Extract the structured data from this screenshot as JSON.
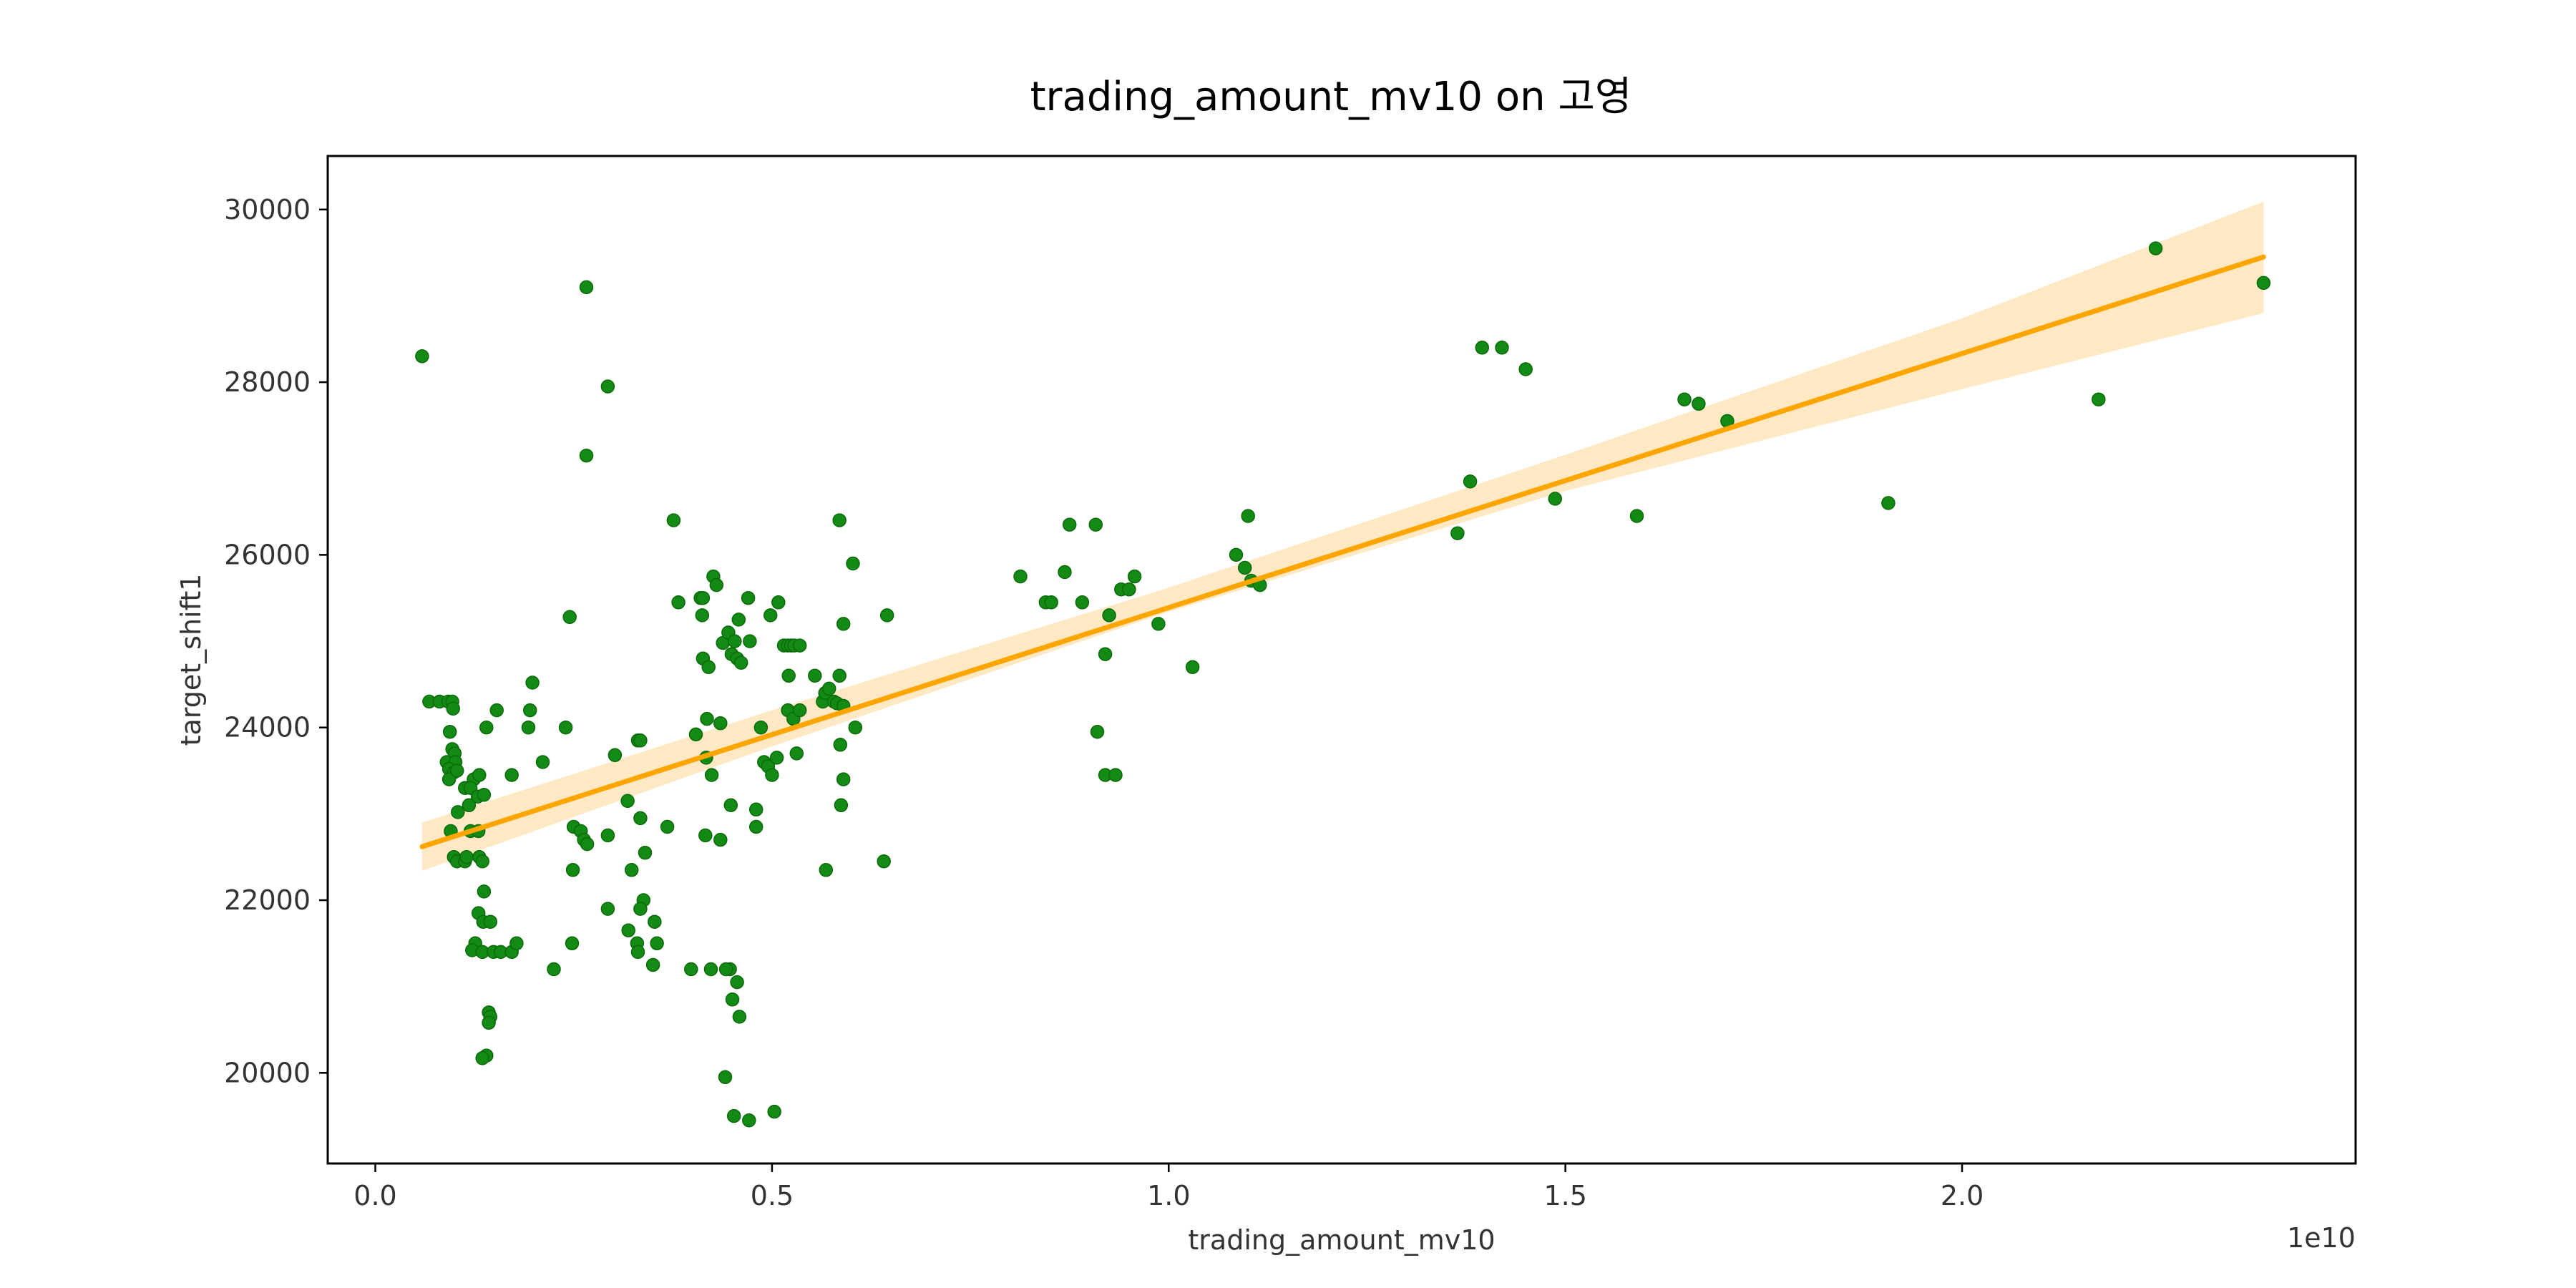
{
  "chart_data": {
    "type": "scatter",
    "title": "trading_amount_mv10 on 고영",
    "xlabel": "trading_amount_mv10",
    "ylabel": "target_shift1",
    "x_offset_label": "1e10",
    "xlim": [
      -0.06,
      2.496
    ],
    "ylim": [
      18950,
      30620
    ],
    "x_ticks": [
      0.0,
      0.5,
      1.0,
      1.5,
      2.0
    ],
    "x_tick_labels": [
      "0.0",
      "0.5",
      "1.0",
      "1.5",
      "2.0"
    ],
    "y_ticks": [
      20000,
      22000,
      24000,
      26000,
      28000,
      30000
    ],
    "y_tick_labels": [
      "20000",
      "22000",
      "24000",
      "26000",
      "28000",
      "30000"
    ],
    "grid": false,
    "legend": false,
    "colors": {
      "points": "#138a13",
      "point_edge": "#0b6a0b",
      "regression_line": "#ffa500",
      "confidence_band": "#ffe9c4",
      "axes": "#000000"
    },
    "series": [
      {
        "kind": "points",
        "units": "x in 1e10",
        "points": [
          [
            0.059,
            28300
          ],
          [
            0.266,
            29100
          ],
          [
            0.266,
            27150
          ],
          [
            0.293,
            27950
          ],
          [
            0.245,
            25280
          ],
          [
            0.376,
            26400
          ],
          [
            0.068,
            24300
          ],
          [
            0.081,
            24300
          ],
          [
            0.092,
            24300
          ],
          [
            0.097,
            24300
          ],
          [
            0.098,
            24220
          ],
          [
            0.094,
            23950
          ],
          [
            0.097,
            23750
          ],
          [
            0.1,
            23700
          ],
          [
            0.09,
            23600
          ],
          [
            0.101,
            23600
          ],
          [
            0.093,
            23520
          ],
          [
            0.099,
            23480
          ],
          [
            0.093,
            23400
          ],
          [
            0.103,
            23500
          ],
          [
            0.124,
            23400
          ],
          [
            0.131,
            23450
          ],
          [
            0.113,
            23300
          ],
          [
            0.12,
            23300
          ],
          [
            0.118,
            23100
          ],
          [
            0.104,
            23020
          ],
          [
            0.129,
            23200
          ],
          [
            0.137,
            23220
          ],
          [
            0.153,
            24200
          ],
          [
            0.14,
            24000
          ],
          [
            0.172,
            23450
          ],
          [
            0.193,
            24000
          ],
          [
            0.195,
            24200
          ],
          [
            0.198,
            24520
          ],
          [
            0.211,
            23600
          ],
          [
            0.24,
            24000
          ],
          [
            0.095,
            22800
          ],
          [
            0.12,
            22800
          ],
          [
            0.13,
            22800
          ],
          [
            0.099,
            22500
          ],
          [
            0.103,
            22450
          ],
          [
            0.113,
            22450
          ],
          [
            0.115,
            22500
          ],
          [
            0.131,
            22500
          ],
          [
            0.135,
            22450
          ],
          [
            0.137,
            22100
          ],
          [
            0.13,
            21850
          ],
          [
            0.136,
            21750
          ],
          [
            0.145,
            21750
          ],
          [
            0.126,
            21500
          ],
          [
            0.122,
            21420
          ],
          [
            0.135,
            21400
          ],
          [
            0.149,
            21400
          ],
          [
            0.158,
            21400
          ],
          [
            0.172,
            21400
          ],
          [
            0.178,
            21500
          ],
          [
            0.143,
            20700
          ],
          [
            0.145,
            20650
          ],
          [
            0.143,
            20580
          ],
          [
            0.14,
            20200
          ],
          [
            0.135,
            20170
          ],
          [
            0.225,
            21200
          ],
          [
            0.25,
            22850
          ],
          [
            0.259,
            22800
          ],
          [
            0.263,
            22700
          ],
          [
            0.267,
            22650
          ],
          [
            0.249,
            22350
          ],
          [
            0.248,
            21500
          ],
          [
            0.293,
            22750
          ],
          [
            0.293,
            21900
          ],
          [
            0.302,
            23680
          ],
          [
            0.318,
            23150
          ],
          [
            0.323,
            22350
          ],
          [
            0.334,
            22950
          ],
          [
            0.331,
            23850
          ],
          [
            0.334,
            23850
          ],
          [
            0.34,
            22550
          ],
          [
            0.319,
            21650
          ],
          [
            0.33,
            21500
          ],
          [
            0.331,
            21400
          ],
          [
            0.338,
            22000
          ],
          [
            0.334,
            21900
          ],
          [
            0.352,
            21750
          ],
          [
            0.355,
            21500
          ],
          [
            0.35,
            21250
          ],
          [
            0.368,
            22850
          ],
          [
            0.382,
            25450
          ],
          [
            0.398,
            21200
          ],
          [
            0.404,
            23920
          ],
          [
            0.41,
            25500
          ],
          [
            0.413,
            25500
          ],
          [
            0.413,
            24800
          ],
          [
            0.412,
            25300
          ],
          [
            0.418,
            24100
          ],
          [
            0.42,
            24700
          ],
          [
            0.417,
            23650
          ],
          [
            0.424,
            23450
          ],
          [
            0.426,
            25750
          ],
          [
            0.43,
            25650
          ],
          [
            0.435,
            24050
          ],
          [
            0.438,
            24980
          ],
          [
            0.445,
            25100
          ],
          [
            0.449,
            24850
          ],
          [
            0.453,
            25000
          ],
          [
            0.456,
            24800
          ],
          [
            0.458,
            25250
          ],
          [
            0.461,
            24750
          ],
          [
            0.47,
            25500
          ],
          [
            0.472,
            25000
          ],
          [
            0.448,
            23100
          ],
          [
            0.435,
            22700
          ],
          [
            0.416,
            22750
          ],
          [
            0.423,
            21200
          ],
          [
            0.447,
            21200
          ],
          [
            0.442,
            21200
          ],
          [
            0.441,
            19950
          ],
          [
            0.45,
            20850
          ],
          [
            0.456,
            21050
          ],
          [
            0.459,
            20650
          ],
          [
            0.452,
            19500
          ],
          [
            0.471,
            19450
          ],
          [
            0.503,
            19550
          ],
          [
            0.48,
            23050
          ],
          [
            0.48,
            22850
          ],
          [
            0.486,
            24000
          ],
          [
            0.49,
            23600
          ],
          [
            0.495,
            23550
          ],
          [
            0.5,
            23450
          ],
          [
            0.506,
            23650
          ],
          [
            0.498,
            25300
          ],
          [
            0.508,
            25450
          ],
          [
            0.515,
            24950
          ],
          [
            0.52,
            24950
          ],
          [
            0.524,
            24950
          ],
          [
            0.528,
            24950
          ],
          [
            0.52,
            24200
          ],
          [
            0.521,
            24600
          ],
          [
            0.527,
            24100
          ],
          [
            0.535,
            24950
          ],
          [
            0.535,
            24200
          ],
          [
            0.531,
            23700
          ],
          [
            0.554,
            24600
          ],
          [
            0.564,
            24300
          ],
          [
            0.567,
            24400
          ],
          [
            0.572,
            24450
          ],
          [
            0.578,
            24300
          ],
          [
            0.582,
            24280
          ],
          [
            0.585,
            24600
          ],
          [
            0.59,
            24250
          ],
          [
            0.568,
            22350
          ],
          [
            0.585,
            26400
          ],
          [
            0.59,
            25200
          ],
          [
            0.602,
            25900
          ],
          [
            0.605,
            24000
          ],
          [
            0.586,
            23800
          ],
          [
            0.59,
            23400
          ],
          [
            0.587,
            23100
          ],
          [
            0.641,
            22450
          ],
          [
            0.645,
            25300
          ],
          [
            0.813,
            25750
          ],
          [
            0.845,
            25450
          ],
          [
            0.852,
            25450
          ],
          [
            0.869,
            25800
          ],
          [
            0.875,
            26350
          ],
          [
            0.891,
            25450
          ],
          [
            0.908,
            26350
          ],
          [
            0.91,
            23950
          ],
          [
            0.92,
            23450
          ],
          [
            0.933,
            23450
          ],
          [
            0.92,
            24850
          ],
          [
            0.925,
            25300
          ],
          [
            0.94,
            25600
          ],
          [
            0.95,
            25600
          ],
          [
            0.957,
            25750
          ],
          [
            0.987,
            25200
          ],
          [
            1.03,
            24700
          ],
          [
            1.085,
            26000
          ],
          [
            1.096,
            25850
          ],
          [
            1.1,
            26450
          ],
          [
            1.104,
            25700
          ],
          [
            1.115,
            25650
          ],
          [
            1.364,
            26250
          ],
          [
            1.38,
            26850
          ],
          [
            1.395,
            28400
          ],
          [
            1.42,
            28400
          ],
          [
            1.45,
            28150
          ],
          [
            1.487,
            26650
          ],
          [
            1.59,
            26450
          ],
          [
            1.65,
            27800
          ],
          [
            1.668,
            27750
          ],
          [
            1.704,
            27550
          ],
          [
            1.907,
            26600
          ],
          [
            2.172,
            27800
          ],
          [
            2.244,
            29550
          ],
          [
            2.38,
            29150
          ]
        ]
      },
      {
        "kind": "regression",
        "x": [
          0.059,
          2.38
        ],
        "y": [
          22620,
          29450
        ]
      },
      {
        "kind": "confidence_band",
        "x": [
          0.059,
          0.5,
          1.0,
          1.5,
          2.0,
          2.38
        ],
        "y_low": [
          22340,
          23780,
          25340,
          26740,
          27920,
          28800
        ],
        "y_high": [
          22900,
          24200,
          25620,
          27160,
          28740,
          30090
        ]
      }
    ]
  }
}
